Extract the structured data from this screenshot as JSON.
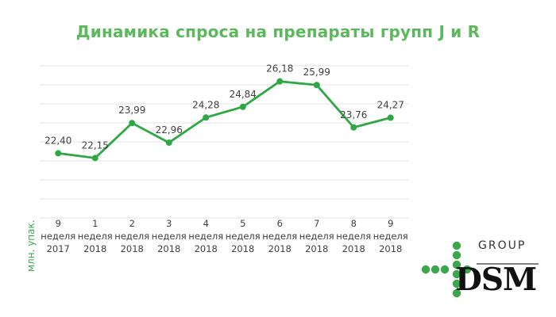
{
  "title": "Динамика спроса на препараты групп J и R",
  "y_axis_label": "млн. упак.",
  "logo": {
    "group": "GROUP",
    "name": "DSM"
  },
  "colors": {
    "line": "#2ea844",
    "title": "#5cb85c",
    "grid": "#e3e3e3",
    "text": "#404040"
  },
  "chart_data": {
    "type": "line",
    "title": "Динамика спроса на препараты групп J и R",
    "ylabel": "млн. упак.",
    "categories": [
      [
        "9",
        "неделя",
        "2017"
      ],
      [
        "1",
        "неделя",
        "2018"
      ],
      [
        "2",
        "неделя",
        "2018"
      ],
      [
        "3",
        "неделя",
        "2018"
      ],
      [
        "4",
        "неделя",
        "2018"
      ],
      [
        "5",
        "неделя",
        "2018"
      ],
      [
        "6",
        "неделя",
        "2018"
      ],
      [
        "7",
        "неделя",
        "2018"
      ],
      [
        "8",
        "неделя",
        "2018"
      ],
      [
        "9",
        "неделя",
        "2018"
      ]
    ],
    "values": [
      22.4,
      22.15,
      23.99,
      22.96,
      24.28,
      24.84,
      26.18,
      25.99,
      23.76,
      24.27
    ],
    "data_labels": [
      "22,40",
      "22,15",
      "23,99",
      "22,96",
      "24,28",
      "24,84",
      "26,18",
      "25,99",
      "23,76",
      "24,27"
    ],
    "ylim": [
      19,
      27
    ],
    "grid": true,
    "legend": "none"
  }
}
